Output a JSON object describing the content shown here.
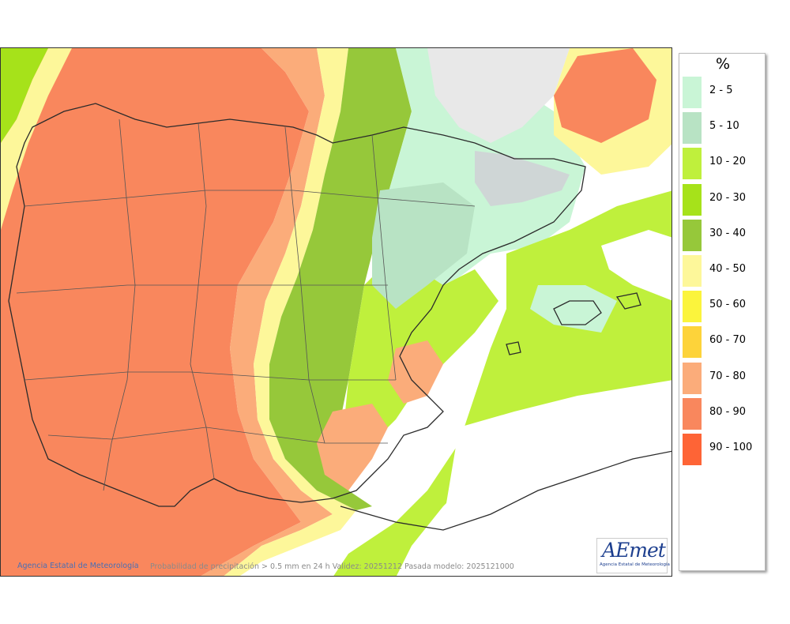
{
  "map": {
    "description_credit": "Agencia Estatal de Meteorología",
    "caption": "Probabilidad de precipitación > 0.5 mm en 24 h Validez: 20251212 Pasada modelo: 2025121000",
    "logo_text": "AEmet",
    "logo_subtext": "Agencia Estatal de Meteorología"
  },
  "legend": {
    "unit": "%",
    "items": [
      {
        "label": "2 - 5",
        "color": "#c9f5d6"
      },
      {
        "label": "5 - 10",
        "color": "#b8e3c4"
      },
      {
        "label": "10 - 20",
        "color": "#bff03c"
      },
      {
        "label": "20 - 30",
        "color": "#a6e21a"
      },
      {
        "label": "30 - 40",
        "color": "#96c83a"
      },
      {
        "label": "40 - 50",
        "color": "#fdf79a"
      },
      {
        "label": "50 - 60",
        "color": "#fbf43c"
      },
      {
        "label": "60 - 70",
        "color": "#fdd33a"
      },
      {
        "label": "70 - 80",
        "color": "#fbac7a"
      },
      {
        "label": "80 - 90",
        "color": "#f9875d"
      },
      {
        "label": "90 - 100",
        "color": "#fe6436"
      }
    ]
  }
}
